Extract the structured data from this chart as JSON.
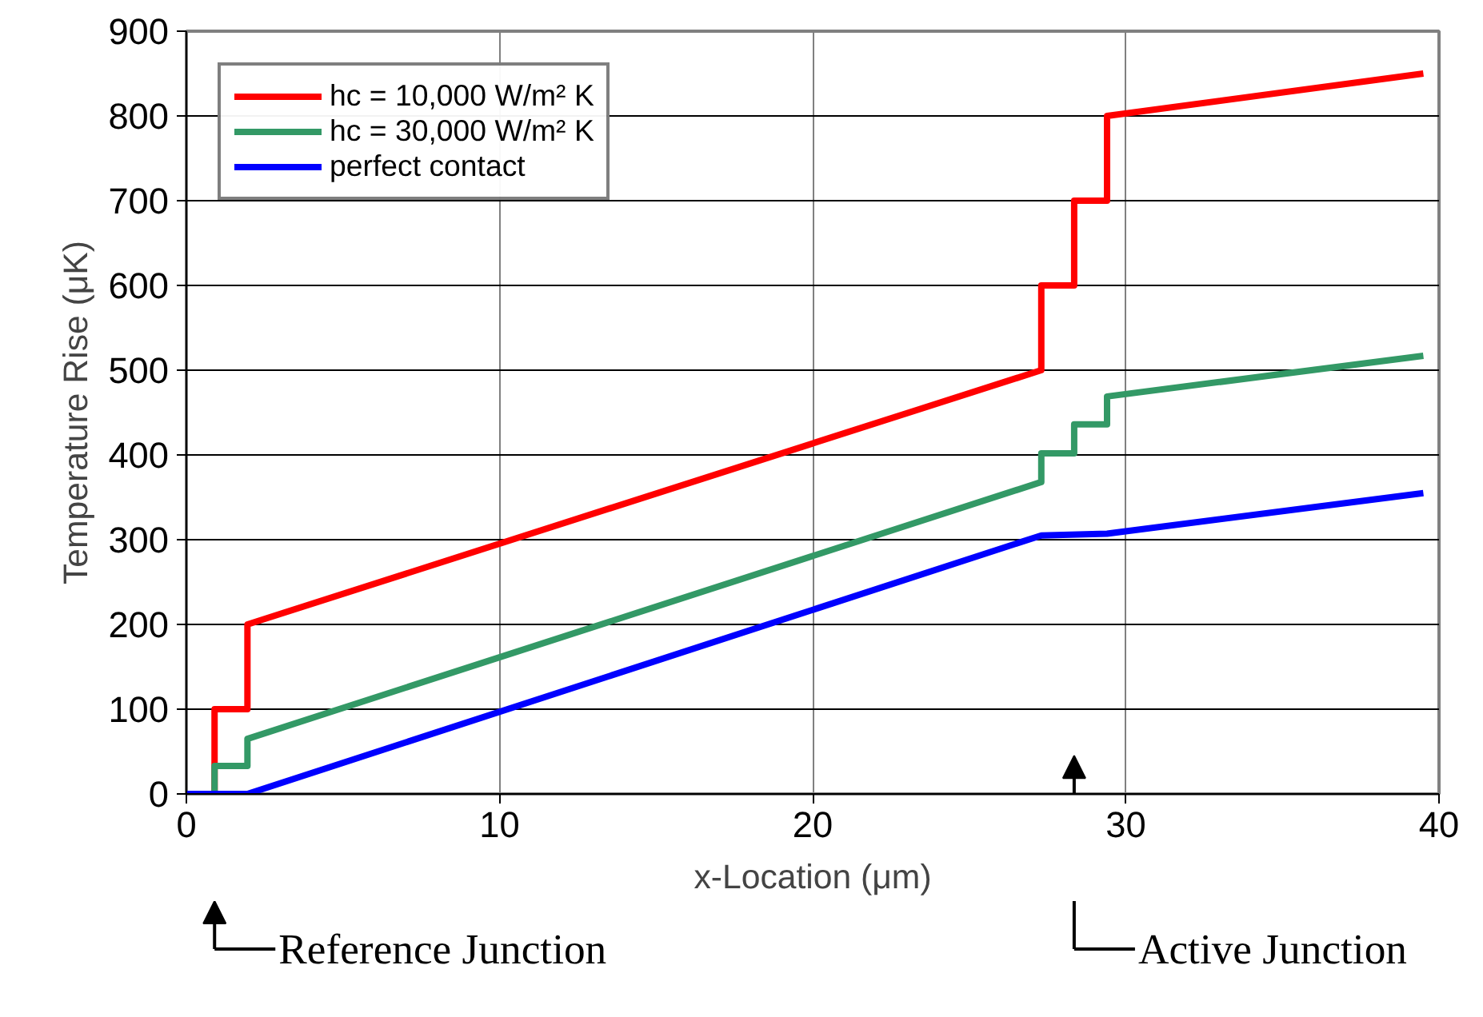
{
  "chart_data": {
    "type": "line",
    "xlabel": "x-Location (μm)",
    "ylabel": "Temperature Rise (μK)",
    "xlim": [
      0,
      40
    ],
    "xticks": [
      0,
      10,
      20,
      30,
      40
    ],
    "ylim": [
      0,
      900
    ],
    "yticks": [
      0,
      100,
      200,
      300,
      400,
      500,
      600,
      700,
      800,
      900
    ],
    "grid": true,
    "legend": "top left",
    "marker": "none",
    "line_style": "solid",
    "series": [
      {
        "name": "hc = 10,000 W/m² K",
        "color": "#ff0000",
        "x": [
          0,
          0.9,
          0.9,
          1.95,
          1.95,
          27.3,
          27.3,
          28.35,
          28.35,
          29.4,
          29.4,
          39.5
        ],
        "values": [
          0,
          0,
          100,
          100,
          200,
          500,
          600,
          600,
          700,
          700,
          800,
          850
        ]
      },
      {
        "name": "hc = 30,000 W/m² K",
        "color": "#339966",
        "x": [
          0,
          0.9,
          0.9,
          1.95,
          1.95,
          27.3,
          27.3,
          28.35,
          28.35,
          29.4,
          29.4,
          39.5
        ],
        "values": [
          0,
          0,
          33,
          33,
          65,
          368,
          402,
          402,
          436,
          436,
          469,
          517
        ]
      },
      {
        "name": "perfect contact",
        "color": "#0000ff",
        "x": [
          0,
          1.95,
          27.3,
          29.4,
          39.5
        ],
        "values": [
          0,
          0,
          305,
          307,
          355
        ]
      }
    ],
    "annotations": [
      "Reference Junction",
      "Active Junction"
    ]
  }
}
